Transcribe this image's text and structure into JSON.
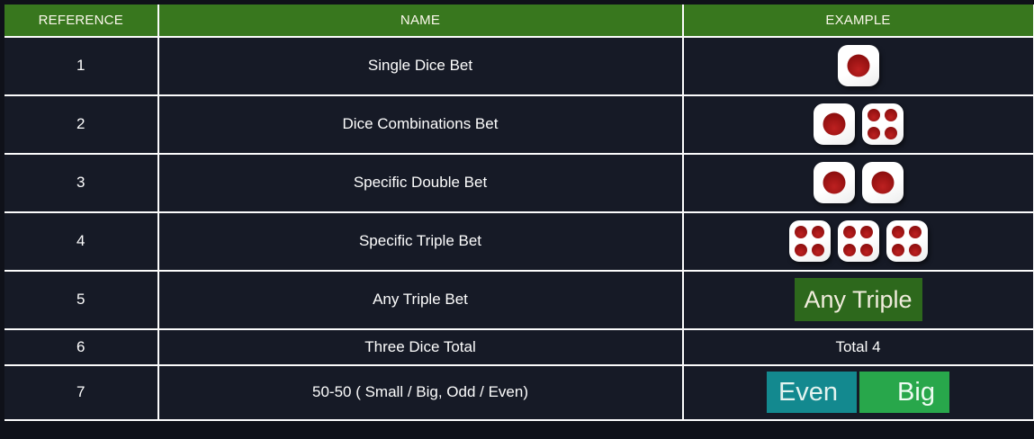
{
  "colors": {
    "page_bg": "#0f1119",
    "row_bg": "#161a26",
    "header_bg": "#38771e",
    "border": "#fcfcfc",
    "pip_red": "#9c1212",
    "any_triple_bg": "#2d681c",
    "even_bg": "#13898f",
    "big_bg": "#28a74b"
  },
  "table": {
    "headers": [
      "REFERENCE",
      "NAME",
      "EXAMPLE"
    ],
    "rows": [
      {
        "reference": "1",
        "name": "Single Dice Bet",
        "example": {
          "type": "dice",
          "faces": [
            1
          ]
        }
      },
      {
        "reference": "2",
        "name": "Dice Combinations Bet",
        "example": {
          "type": "dice",
          "faces": [
            1,
            4
          ]
        }
      },
      {
        "reference": "3",
        "name": "Specific Double Bet",
        "example": {
          "type": "dice",
          "faces": [
            1,
            1
          ]
        }
      },
      {
        "reference": "4",
        "name": "Specific Triple Bet",
        "example": {
          "type": "dice",
          "faces": [
            4,
            4,
            4
          ]
        }
      },
      {
        "reference": "5",
        "name": "Any Triple Bet",
        "example": {
          "type": "badge",
          "label": "Any Triple",
          "color": "#2d681c"
        }
      },
      {
        "reference": "6",
        "name": "Three Dice Total",
        "example": {
          "type": "text",
          "label": "Total 4"
        }
      },
      {
        "reference": "7",
        "name": "50-50 ( Small / Big, Odd / Even)",
        "example": {
          "type": "badges",
          "badges": [
            {
              "label": "Even",
              "color": "#13898f"
            },
            {
              "label": "Big",
              "color": "#28a74b"
            }
          ]
        }
      }
    ]
  }
}
